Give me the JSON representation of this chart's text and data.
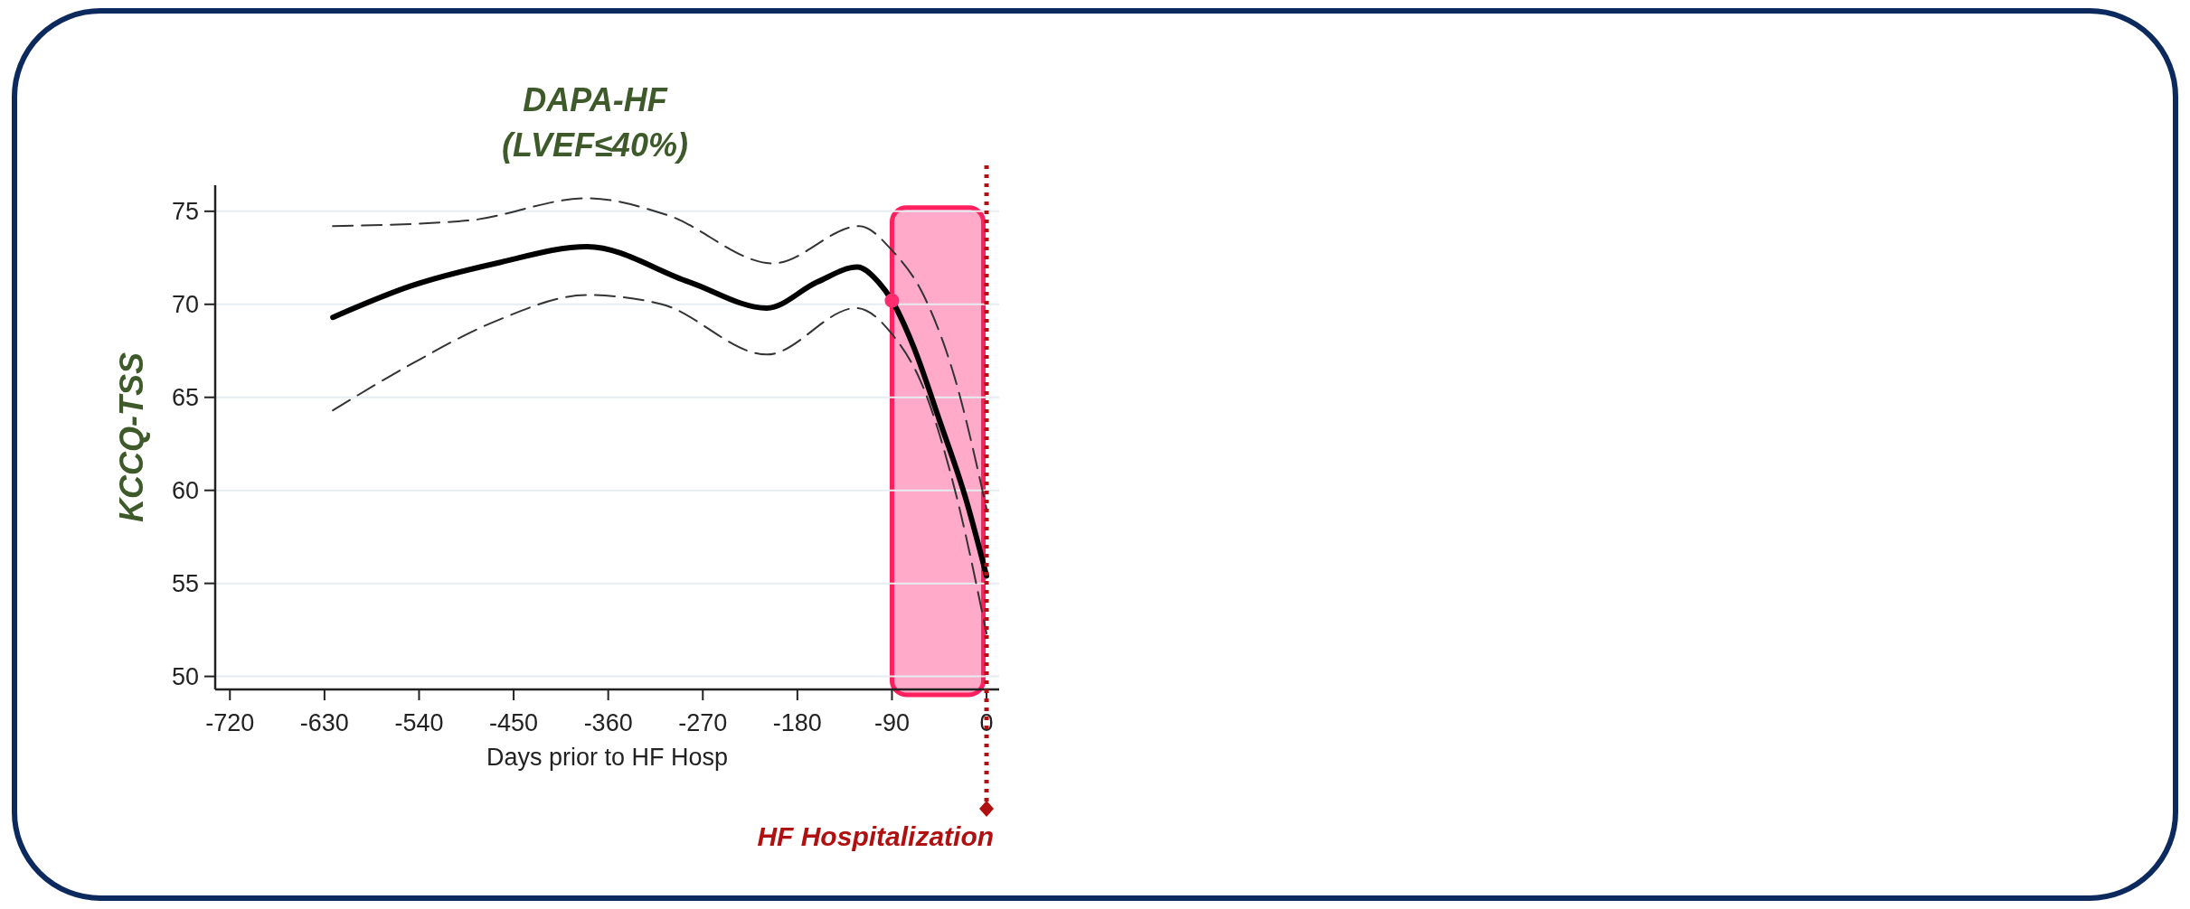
{
  "chart_data": {
    "type": "line",
    "title": "DAPA-HF",
    "subtitle": "(LVEF≤40%)",
    "xlabel": "Days prior to HF Hosp",
    "ylabel": "KCCQ-TSS",
    "xlim": [
      -734,
      12
    ],
    "ylim": [
      49.3,
      76.4
    ],
    "xticks": [
      -720,
      -630,
      -540,
      -450,
      -360,
      -270,
      -180,
      -90,
      0
    ],
    "yticks": [
      50,
      55,
      60,
      65,
      70,
      75
    ],
    "grid": "y",
    "series": [
      {
        "color": "#000000",
        "x": [
          -622,
          -547,
          -467,
          -380,
          -283,
          -209,
          -161,
          -123,
          -103,
          -90,
          -70,
          -45,
          -20,
          0
        ],
        "values": [
          69.3,
          71.0,
          72.2,
          73.1,
          71.2,
          69.8,
          71.2,
          72.0,
          71.2,
          70.2,
          67.8,
          63.8,
          59.6,
          55.4
        ]
      },
      {
        "color": "#333333",
        "line_style": "dashed",
        "x": [
          -622,
          -494,
          -380,
          -304,
          -203,
          -121,
          -90,
          -60,
          -30,
          0
        ],
        "values": [
          74.2,
          74.5,
          75.7,
          74.8,
          72.2,
          74.2,
          72.9,
          70.5,
          66.0,
          59.0
        ]
      },
      {
        "color": "#333333",
        "line_style": "dashed",
        "x": [
          -622,
          -547,
          -467,
          -380,
          -309,
          -209,
          -124,
          -90,
          -60,
          -30,
          0
        ],
        "values": [
          64.3,
          66.8,
          69.1,
          70.5,
          70.0,
          67.3,
          69.8,
          68.4,
          65.5,
          60.0,
          52.3
        ]
      },
      {
        "type": "scatter",
        "color": "#ff2d6f",
        "marker": "circle",
        "x": [
          -90
        ],
        "values": [
          70.2
        ]
      }
    ],
    "bands": [
      {
        "axis": "x",
        "from": -90,
        "to": -3,
        "color": "#ffaac8"
      }
    ],
    "ref_lines": [
      {
        "axis": "x",
        "value": 0,
        "label": "HF Hospitalization",
        "color": "#b01010",
        "line_style": "dotted"
      }
    ]
  }
}
